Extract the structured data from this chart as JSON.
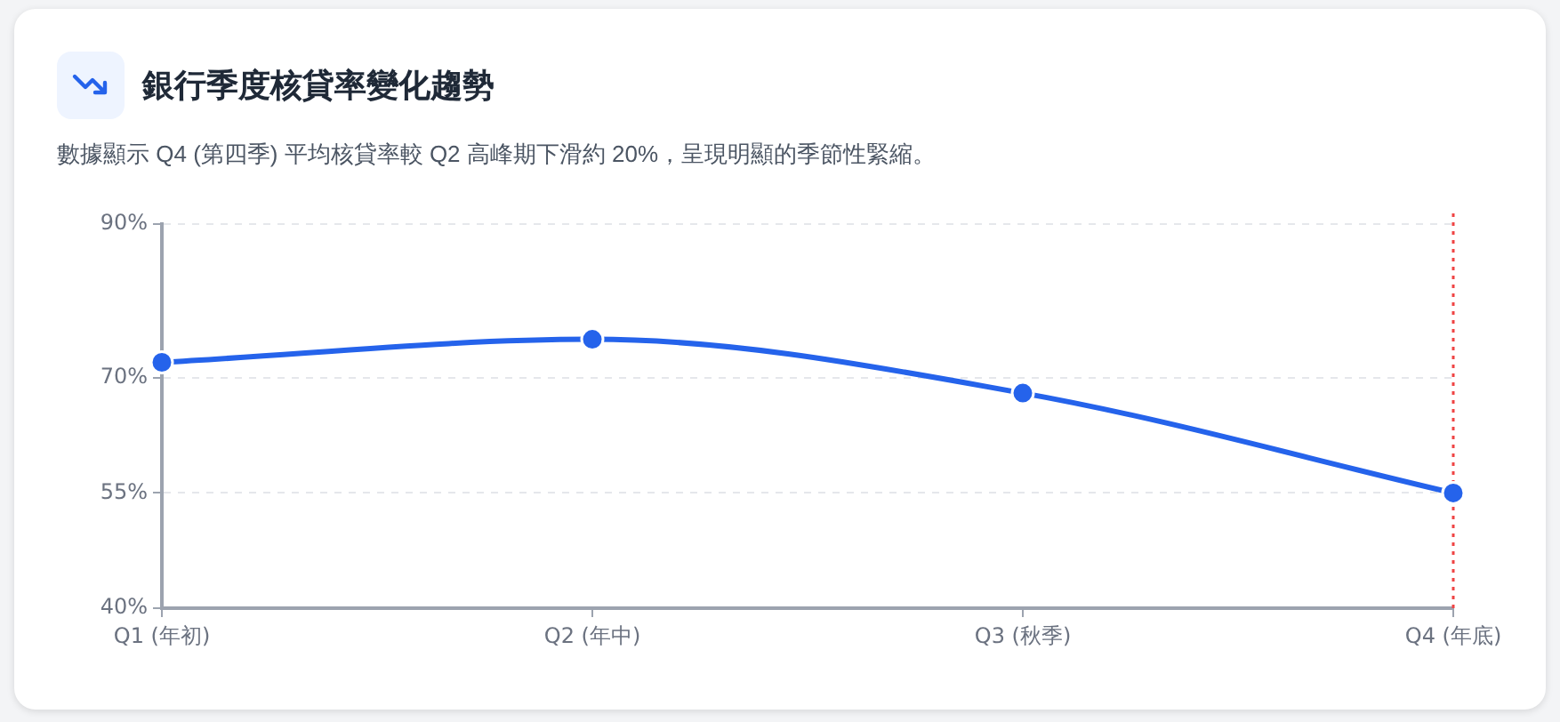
{
  "chart_data": {
    "type": "line",
    "title": "銀行季度核貸率變化趨勢",
    "subtitle": "數據顯示 Q4 (第四季) 平均核貸率較 Q2 高峰期下滑約 20%，呈現明顯的季節性緊縮。",
    "categories": [
      "Q1 (年初)",
      "Q2 (年中)",
      "Q3 (秋季)",
      "Q4 (年底)"
    ],
    "series": [
      {
        "color": "#2563eb",
        "values": [
          72,
          75,
          68,
          55
        ]
      }
    ],
    "ylim": [
      40,
      90
    ],
    "yticks": [
      {
        "value": 40,
        "label": "40%"
      },
      {
        "value": 55,
        "label": "55%"
      },
      {
        "value": 70,
        "label": "70%"
      },
      {
        "value": 90,
        "label": "90%"
      }
    ],
    "grid": "y",
    "marker": "circle",
    "ref_lines": [
      {
        "axis": "x",
        "value": "Q4 (年底)",
        "color": "#ef4444",
        "line_style": "dotted"
      }
    ]
  }
}
